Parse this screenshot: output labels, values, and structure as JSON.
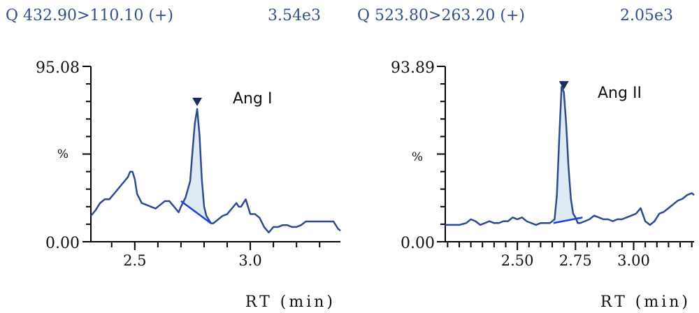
{
  "chart_data": [
    {
      "type": "line",
      "header": {
        "transition": "Q 432.90>110.10 (+)",
        "intensity": "3.54e3"
      },
      "ymax_label": "95.08",
      "ymin_label": "0.00",
      "ylabel": "%",
      "xlabel": "RT (min)",
      "annotation": "Ang I",
      "xlim": [
        2.31,
        3.39
      ],
      "ylim": [
        0,
        95.08
      ],
      "x_ticks": [
        2.5,
        3.0
      ],
      "x_tick_labels": [
        "2.5",
        "3.0"
      ],
      "x_minor_step": 0.1,
      "series": [
        {
          "name": "Q 432.90>110.10 (+)",
          "x": [
            2.31,
            2.33,
            2.35,
            2.37,
            2.39,
            2.41,
            2.43,
            2.45,
            2.47,
            2.48,
            2.49,
            2.5,
            2.51,
            2.53,
            2.55,
            2.57,
            2.59,
            2.61,
            2.63,
            2.65,
            2.67,
            2.69,
            2.7,
            2.72,
            2.74,
            2.75,
            2.76,
            2.77,
            2.78,
            2.79,
            2.8,
            2.81,
            2.82,
            2.83,
            2.84,
            2.86,
            2.88,
            2.9,
            2.92,
            2.94,
            2.95,
            2.96,
            2.97,
            2.98,
            2.99,
            3.0,
            3.02,
            3.04,
            3.06,
            3.08,
            3.1,
            3.12,
            3.14,
            3.16,
            3.18,
            3.2,
            3.22,
            3.24,
            3.26,
            3.28,
            3.3,
            3.32,
            3.34,
            3.36,
            3.38,
            3.39
          ],
          "y": [
            14,
            17,
            21,
            23,
            23,
            26,
            29,
            32,
            35,
            38,
            38,
            34,
            26,
            21,
            20,
            19,
            18,
            20,
            22,
            22,
            19,
            16,
            19,
            24,
            33,
            49,
            64,
            72,
            58,
            34,
            19,
            14,
            12,
            10,
            10,
            12,
            14,
            15,
            18,
            21,
            19,
            19,
            21,
            23,
            19,
            15,
            15,
            13,
            8,
            5,
            8,
            8,
            9,
            9,
            8,
            8,
            9,
            11,
            11,
            11,
            11,
            11,
            11,
            11,
            7,
            6
          ]
        }
      ],
      "peak": {
        "start": 2.7,
        "apex": 2.77,
        "end": 2.83,
        "baseline": [
          22,
          10
        ]
      }
    },
    {
      "type": "line",
      "header": {
        "transition": "Q 523.80>263.20 (+)",
        "intensity": "2.05e3"
      },
      "ymax_label": "93.89",
      "ymin_label": "0.00",
      "ylabel": "%",
      "xlabel": "RT (min)",
      "annotation": "Ang II",
      "xlim": [
        2.19,
        3.26
      ],
      "ylim": [
        0,
        93.89
      ],
      "x_ticks": [
        2.5,
        2.75,
        3.0
      ],
      "x_tick_labels": [
        "2.50",
        "2.75",
        "3.00"
      ],
      "x_minor_step": 0.05,
      "series": [
        {
          "name": "Q 523.80>263.20 (+)",
          "x": [
            2.19,
            2.22,
            2.25,
            2.28,
            2.3,
            2.32,
            2.34,
            2.36,
            2.38,
            2.4,
            2.42,
            2.44,
            2.46,
            2.48,
            2.5,
            2.52,
            2.54,
            2.56,
            2.58,
            2.6,
            2.62,
            2.64,
            2.66,
            2.67,
            2.68,
            2.69,
            2.7,
            2.71,
            2.72,
            2.73,
            2.74,
            2.75,
            2.76,
            2.77,
            2.79,
            2.81,
            2.83,
            2.85,
            2.87,
            2.89,
            2.91,
            2.93,
            2.95,
            2.97,
            2.99,
            3.01,
            3.03,
            3.05,
            3.07,
            3.09,
            3.11,
            3.13,
            3.15,
            3.17,
            3.19,
            3.21,
            3.23,
            3.25,
            3.26
          ],
          "y": [
            9,
            9,
            9,
            10,
            12,
            11,
            9,
            10,
            11,
            10,
            10,
            11,
            11,
            13,
            12,
            13,
            11,
            10,
            9,
            10,
            10,
            10,
            12,
            25,
            55,
            83,
            80,
            63,
            40,
            23,
            15,
            13,
            10,
            10,
            11,
            12,
            14,
            13,
            12,
            12,
            11,
            12,
            12,
            13,
            14,
            15,
            18,
            11,
            9,
            11,
            15,
            16,
            18,
            20,
            22,
            23,
            25,
            26,
            25
          ]
        }
      ],
      "peak": {
        "start": 2.655,
        "apex": 2.7,
        "end": 2.78,
        "baseline": [
          10,
          13
        ]
      }
    }
  ]
}
